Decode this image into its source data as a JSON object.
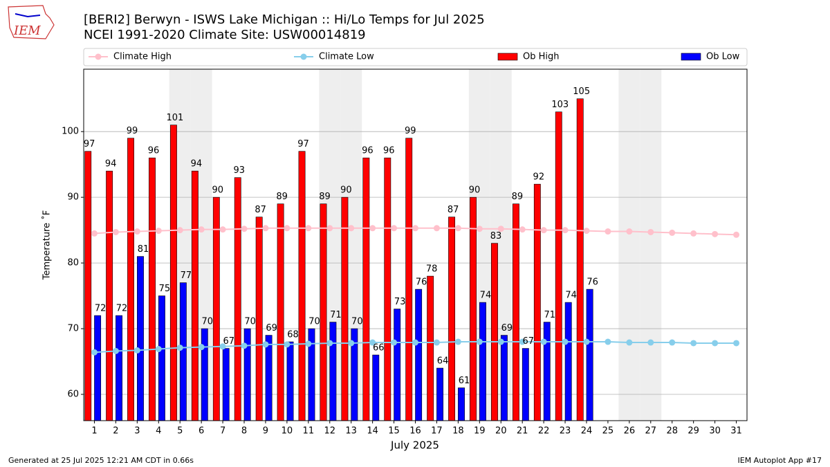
{
  "logo_text": "IEM",
  "footer": {
    "left": "Generated at 25 Jul 2025 12:21 AM CDT in 0.66s",
    "right": "IEM Autoplot App #17"
  },
  "chart_data": {
    "type": "bar_line",
    "title": "[BERI2] Berwyn - ISWS Lake Michigan :: Hi/Lo Temps for Jul 2025",
    "subtitle": "NCEI 1991-2020 Climate Site: USW00014819",
    "xlabel": "July 2025",
    "ylabel": "Temperature ˚F",
    "x": [
      1,
      2,
      3,
      4,
      5,
      6,
      7,
      8,
      9,
      10,
      11,
      12,
      13,
      14,
      15,
      16,
      17,
      18,
      19,
      20,
      21,
      22,
      23,
      24,
      25,
      26,
      27,
      28,
      29,
      30,
      31
    ],
    "xlim": [
      0.5,
      31.5
    ],
    "ylim": [
      56,
      109.5
    ],
    "yticks": [
      60,
      70,
      80,
      90,
      100
    ],
    "grid": true,
    "shaded_days": [
      5,
      6,
      12,
      13,
      19,
      20,
      26,
      27
    ],
    "series": [
      {
        "name": "Climate High",
        "kind": "line",
        "color": "#ffc0cb",
        "values": [
          84.5,
          84.7,
          84.8,
          84.9,
          85.0,
          85.1,
          85.1,
          85.2,
          85.3,
          85.3,
          85.3,
          85.3,
          85.3,
          85.3,
          85.3,
          85.3,
          85.3,
          85.3,
          85.2,
          85.2,
          85.1,
          85.0,
          85.0,
          84.9,
          84.8,
          84.8,
          84.7,
          84.6,
          84.5,
          84.4,
          84.3
        ]
      },
      {
        "name": "Climate Low",
        "kind": "line",
        "color": "#87ceeb",
        "values": [
          66.4,
          66.6,
          66.7,
          66.9,
          67.1,
          67.2,
          67.3,
          67.4,
          67.6,
          67.6,
          67.7,
          67.8,
          67.8,
          67.9,
          67.9,
          67.9,
          67.9,
          68.0,
          68.0,
          68.0,
          68.0,
          68.0,
          68.0,
          68.0,
          68.0,
          67.9,
          67.9,
          67.9,
          67.8,
          67.8,
          67.8
        ]
      },
      {
        "name": "Ob High",
        "kind": "bar",
        "color": "#ff0000",
        "values": [
          97,
          94,
          99,
          96,
          101,
          94,
          90,
          93,
          87,
          89,
          97,
          89,
          90,
          96,
          96,
          99,
          78,
          87,
          90,
          83,
          89,
          92,
          103,
          105,
          null,
          null,
          null,
          null,
          null,
          null,
          null
        ]
      },
      {
        "name": "Ob Low",
        "kind": "bar",
        "color": "#0000ff",
        "values": [
          72,
          72,
          81,
          75,
          77,
          70,
          67,
          70,
          69,
          68,
          70,
          71,
          70,
          66,
          73,
          76,
          64,
          61,
          74,
          69,
          67,
          71,
          74,
          76,
          null,
          null,
          null,
          null,
          null,
          null,
          null
        ]
      }
    ]
  }
}
